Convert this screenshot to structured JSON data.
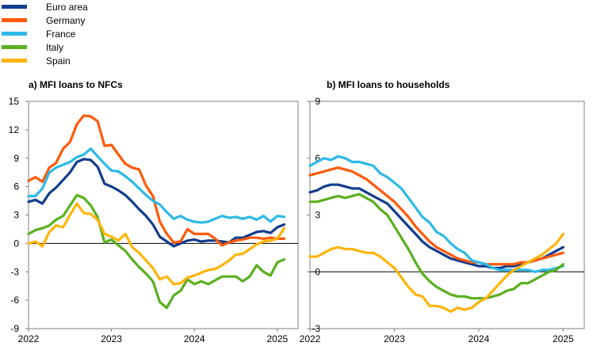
{
  "chart_data": {
    "type": "line",
    "legend": {
      "placement": "top-left",
      "entries": [
        {
          "name": "Euro area",
          "color": "#143C8C"
        },
        {
          "name": "Germany",
          "color": "#FF5A0A"
        },
        {
          "name": "France",
          "color": "#2DB9E6"
        },
        {
          "name": "Italy",
          "color": "#5AAF1E"
        },
        {
          "name": "Spain",
          "color": "#FFB40A"
        }
      ]
    },
    "panels": [
      {
        "title": "a) MFI loans to NFCs",
        "ylim": [
          -9,
          15
        ],
        "yticks": [
          "15",
          "12",
          "9",
          "6",
          "3",
          "0",
          "-3",
          "-6",
          "-9"
        ],
        "xticks": [
          "2022",
          "2023",
          "2024",
          "2025"
        ],
        "xlim": [
          2022.0,
          2025.25
        ],
        "grid": false,
        "series": [
          {
            "name": "Euro area",
            "color": "#143C8C",
            "x": [
              2022.0,
              2022.083,
              2022.167,
              2022.25,
              2022.333,
              2022.417,
              2022.5,
              2022.583,
              2022.667,
              2022.75,
              2022.833,
              2022.917,
              2023.0,
              2023.083,
              2023.167,
              2023.25,
              2023.333,
              2023.417,
              2023.5,
              2023.583,
              2023.667,
              2023.75,
              2023.833,
              2023.917,
              2024.0,
              2024.083,
              2024.167,
              2024.25,
              2024.333,
              2024.417,
              2024.5,
              2024.583,
              2024.667,
              2024.75,
              2024.833,
              2024.917,
              2025.0,
              2025.083
            ],
            "y": [
              4.4,
              4.6,
              4.2,
              5.3,
              5.9,
              6.7,
              7.5,
              8.6,
              8.9,
              8.8,
              8.1,
              6.3,
              6.0,
              5.6,
              5.1,
              4.4,
              3.6,
              2.9,
              2.0,
              0.7,
              0.2,
              -0.3,
              0.0,
              0.3,
              0.4,
              0.2,
              0.3,
              0.3,
              0.2,
              0.1,
              0.6,
              0.6,
              0.9,
              1.2,
              1.3,
              1.1,
              1.7,
              2.0
            ]
          },
          {
            "name": "Germany",
            "color": "#FF5A0A",
            "x": [
              2022.0,
              2022.083,
              2022.167,
              2022.25,
              2022.333,
              2022.417,
              2022.5,
              2022.583,
              2022.667,
              2022.75,
              2022.833,
              2022.917,
              2023.0,
              2023.083,
              2023.167,
              2023.25,
              2023.333,
              2023.417,
              2023.5,
              2023.583,
              2023.667,
              2023.75,
              2023.833,
              2023.917,
              2024.0,
              2024.083,
              2024.167,
              2024.25,
              2024.333,
              2024.417,
              2024.5,
              2024.583,
              2024.667,
              2024.75,
              2024.833,
              2024.917,
              2025.0,
              2025.083
            ],
            "y": [
              6.6,
              7.0,
              6.5,
              8.0,
              8.5,
              10.0,
              10.7,
              12.6,
              13.5,
              13.4,
              12.9,
              10.3,
              10.4,
              9.4,
              8.4,
              8.0,
              7.8,
              6.1,
              5.0,
              2.3,
              1.0,
              0.1,
              0.2,
              1.5,
              1.0,
              1.0,
              1.0,
              0.5,
              -0.2,
              0.1,
              0.3,
              0.4,
              0.6,
              0.6,
              0.5,
              0.6,
              0.5,
              0.5
            ]
          },
          {
            "name": "France",
            "color": "#2DB9E6",
            "x": [
              2022.0,
              2022.083,
              2022.167,
              2022.25,
              2022.333,
              2022.417,
              2022.5,
              2022.583,
              2022.667,
              2022.75,
              2022.833,
              2022.917,
              2023.0,
              2023.083,
              2023.167,
              2023.25,
              2023.333,
              2023.417,
              2023.5,
              2023.583,
              2023.667,
              2023.75,
              2023.833,
              2023.917,
              2024.0,
              2024.083,
              2024.167,
              2024.25,
              2024.333,
              2024.417,
              2024.5,
              2024.583,
              2024.667,
              2024.75,
              2024.833,
              2024.917,
              2025.0,
              2025.083
            ],
            "y": [
              5.0,
              5.0,
              5.8,
              7.5,
              8.0,
              8.3,
              8.6,
              9.1,
              9.4,
              10.0,
              9.2,
              8.4,
              7.7,
              7.6,
              7.1,
              6.5,
              5.8,
              5.1,
              4.5,
              4.1,
              3.3,
              2.6,
              2.9,
              2.5,
              2.3,
              2.2,
              2.3,
              2.6,
              2.9,
              2.7,
              2.8,
              2.6,
              2.8,
              2.5,
              2.9,
              2.3,
              2.9,
              2.8
            ]
          },
          {
            "name": "Italy",
            "color": "#5AAF1E",
            "x": [
              2022.0,
              2022.083,
              2022.167,
              2022.25,
              2022.333,
              2022.417,
              2022.5,
              2022.583,
              2022.667,
              2022.75,
              2022.833,
              2022.917,
              2023.0,
              2023.083,
              2023.167,
              2023.25,
              2023.333,
              2023.417,
              2023.5,
              2023.583,
              2023.667,
              2023.75,
              2023.833,
              2023.917,
              2024.0,
              2024.083,
              2024.167,
              2024.25,
              2024.333,
              2024.417,
              2024.5,
              2024.583,
              2024.667,
              2024.75,
              2024.833,
              2024.917,
              2025.0,
              2025.083
            ],
            "y": [
              1.0,
              1.4,
              1.6,
              1.9,
              2.5,
              2.9,
              4.0,
              5.1,
              4.8,
              4.0,
              2.8,
              0.1,
              0.4,
              -0.2,
              -0.8,
              -1.7,
              -2.5,
              -3.2,
              -4.0,
              -6.2,
              -6.8,
              -5.5,
              -5.0,
              -3.8,
              -4.3,
              -4.0,
              -4.3,
              -3.9,
              -3.5,
              -3.5,
              -3.5,
              -4.0,
              -3.5,
              -2.3,
              -3.0,
              -3.4,
              -2.0,
              -1.7
            ]
          },
          {
            "name": "Spain",
            "color": "#FFB40A",
            "x": [
              2022.0,
              2022.083,
              2022.167,
              2022.25,
              2022.333,
              2022.417,
              2022.5,
              2022.583,
              2022.667,
              2022.75,
              2022.833,
              2022.917,
              2023.0,
              2023.083,
              2023.167,
              2023.25,
              2023.333,
              2023.417,
              2023.5,
              2023.583,
              2023.667,
              2023.75,
              2023.833,
              2023.917,
              2024.0,
              2024.083,
              2024.167,
              2024.25,
              2024.333,
              2024.417,
              2024.5,
              2024.583,
              2024.667,
              2024.75,
              2024.833,
              2024.917,
              2025.0,
              2025.083
            ],
            "y": [
              0.0,
              0.2,
              -0.3,
              1.2,
              1.9,
              1.7,
              3.0,
              4.2,
              3.2,
              3.1,
              2.5,
              1.0,
              0.7,
              0.3,
              1.0,
              -0.4,
              -1.0,
              -1.8,
              -2.6,
              -3.8,
              -3.5,
              -4.3,
              -4.2,
              -3.6,
              -3.4,
              -3.1,
              -2.8,
              -2.7,
              -2.3,
              -1.8,
              -1.2,
              -1.1,
              -0.6,
              -0.1,
              0.2,
              0.3,
              0.5,
              1.6
            ]
          }
        ]
      },
      {
        "title": "b) MFI loans to households",
        "ylim": [
          -3,
          9
        ],
        "yticks": [
          "9",
          "6",
          "3",
          "0",
          "-3"
        ],
        "xticks": [
          "2022",
          "2023",
          "2024",
          "2025"
        ],
        "xlim": [
          2022.0,
          2025.25
        ],
        "grid": false,
        "series": [
          {
            "name": "Euro area",
            "color": "#143C8C",
            "x": [
              2022.0,
              2022.083,
              2022.167,
              2022.25,
              2022.333,
              2022.417,
              2022.5,
              2022.583,
              2022.667,
              2022.75,
              2022.833,
              2022.917,
              2023.0,
              2023.083,
              2023.167,
              2023.25,
              2023.333,
              2023.417,
              2023.5,
              2023.583,
              2023.667,
              2023.75,
              2023.833,
              2023.917,
              2024.0,
              2024.083,
              2024.167,
              2024.25,
              2024.333,
              2024.417,
              2024.5,
              2024.583,
              2024.667,
              2024.75,
              2024.833,
              2024.917,
              2025.0
            ],
            "y": [
              4.2,
              4.3,
              4.5,
              4.6,
              4.6,
              4.5,
              4.4,
              4.4,
              4.2,
              4.0,
              3.8,
              3.6,
              3.2,
              2.8,
              2.4,
              2.0,
              1.6,
              1.3,
              1.1,
              0.9,
              0.7,
              0.6,
              0.5,
              0.4,
              0.3,
              0.3,
              0.2,
              0.2,
              0.3,
              0.3,
              0.4,
              0.5,
              0.6,
              0.7,
              0.9,
              1.1,
              1.3
            ]
          },
          {
            "name": "Germany",
            "color": "#FF5A0A",
            "x": [
              2022.0,
              2022.083,
              2022.167,
              2022.25,
              2022.333,
              2022.417,
              2022.5,
              2022.583,
              2022.667,
              2022.75,
              2022.833,
              2022.917,
              2023.0,
              2023.083,
              2023.167,
              2023.25,
              2023.333,
              2023.417,
              2023.5,
              2023.583,
              2023.667,
              2023.75,
              2023.833,
              2023.917,
              2024.0,
              2024.083,
              2024.167,
              2024.25,
              2024.333,
              2024.417,
              2024.5,
              2024.583,
              2024.667,
              2024.75,
              2024.833,
              2024.917,
              2025.0
            ],
            "y": [
              5.1,
              5.2,
              5.3,
              5.4,
              5.5,
              5.4,
              5.3,
              5.1,
              4.9,
              4.6,
              4.3,
              4.0,
              3.7,
              3.3,
              2.9,
              2.4,
              2.0,
              1.6,
              1.3,
              1.1,
              0.9,
              0.7,
              0.6,
              0.5,
              0.5,
              0.4,
              0.4,
              0.4,
              0.4,
              0.4,
              0.5,
              0.5,
              0.6,
              0.7,
              0.8,
              0.9,
              1.0
            ]
          },
          {
            "name": "France",
            "color": "#2DB9E6",
            "x": [
              2022.0,
              2022.083,
              2022.167,
              2022.25,
              2022.333,
              2022.417,
              2022.5,
              2022.583,
              2022.667,
              2022.75,
              2022.833,
              2022.917,
              2023.0,
              2023.083,
              2023.167,
              2023.25,
              2023.333,
              2023.417,
              2023.5,
              2023.583,
              2023.667,
              2023.75,
              2023.833,
              2023.917,
              2024.0,
              2024.083,
              2024.167,
              2024.25,
              2024.333,
              2024.417,
              2024.5,
              2024.583,
              2024.667,
              2024.75,
              2024.833,
              2024.917,
              2025.0
            ],
            "y": [
              5.6,
              5.8,
              6.0,
              5.9,
              6.1,
              6.0,
              5.8,
              5.8,
              5.7,
              5.6,
              5.2,
              5.0,
              4.7,
              4.4,
              3.9,
              3.4,
              2.9,
              2.6,
              2.1,
              1.9,
              1.5,
              1.2,
              1.0,
              0.6,
              0.5,
              0.4,
              0.2,
              0.1,
              0.1,
              0.1,
              0.1,
              0.1,
              0.0,
              0.1,
              0.1,
              0.2,
              0.3
            ]
          },
          {
            "name": "Italy",
            "color": "#5AAF1E",
            "x": [
              2022.0,
              2022.083,
              2022.167,
              2022.25,
              2022.333,
              2022.417,
              2022.5,
              2022.583,
              2022.667,
              2022.75,
              2022.833,
              2022.917,
              2023.0,
              2023.083,
              2023.167,
              2023.25,
              2023.333,
              2023.417,
              2023.5,
              2023.583,
              2023.667,
              2023.75,
              2023.833,
              2023.917,
              2024.0,
              2024.083,
              2024.167,
              2024.25,
              2024.333,
              2024.417,
              2024.5,
              2024.583,
              2024.667,
              2024.75,
              2024.833,
              2024.917,
              2025.0
            ],
            "y": [
              3.7,
              3.7,
              3.8,
              3.9,
              4.0,
              3.9,
              4.0,
              4.1,
              3.9,
              3.7,
              3.3,
              3.0,
              2.4,
              1.8,
              1.2,
              0.5,
              -0.1,
              -0.5,
              -0.8,
              -1.0,
              -1.2,
              -1.3,
              -1.3,
              -1.4,
              -1.4,
              -1.4,
              -1.3,
              -1.2,
              -1.0,
              -0.9,
              -0.6,
              -0.6,
              -0.4,
              -0.2,
              0.0,
              0.1,
              0.4
            ]
          },
          {
            "name": "Spain",
            "color": "#FFB40A",
            "x": [
              2022.0,
              2022.083,
              2022.167,
              2022.25,
              2022.333,
              2022.417,
              2022.5,
              2022.583,
              2022.667,
              2022.75,
              2022.833,
              2022.917,
              2023.0,
              2023.083,
              2023.167,
              2023.25,
              2023.333,
              2023.417,
              2023.5,
              2023.583,
              2023.667,
              2023.75,
              2023.833,
              2023.917,
              2024.0,
              2024.083,
              2024.167,
              2024.25,
              2024.333,
              2024.417,
              2024.5,
              2024.583,
              2024.667,
              2024.75,
              2024.833,
              2024.917,
              2025.0
            ],
            "y": [
              0.8,
              0.8,
              1.0,
              1.2,
              1.3,
              1.2,
              1.2,
              1.1,
              1.0,
              1.0,
              0.8,
              0.5,
              0.2,
              -0.3,
              -0.8,
              -1.2,
              -1.3,
              -1.8,
              -1.8,
              -1.9,
              -2.1,
              -1.9,
              -2.0,
              -1.9,
              -1.6,
              -1.4,
              -1.0,
              -0.6,
              -0.2,
              0.1,
              0.3,
              0.5,
              0.7,
              0.9,
              1.2,
              1.5,
              2.0
            ]
          }
        ]
      }
    ]
  }
}
